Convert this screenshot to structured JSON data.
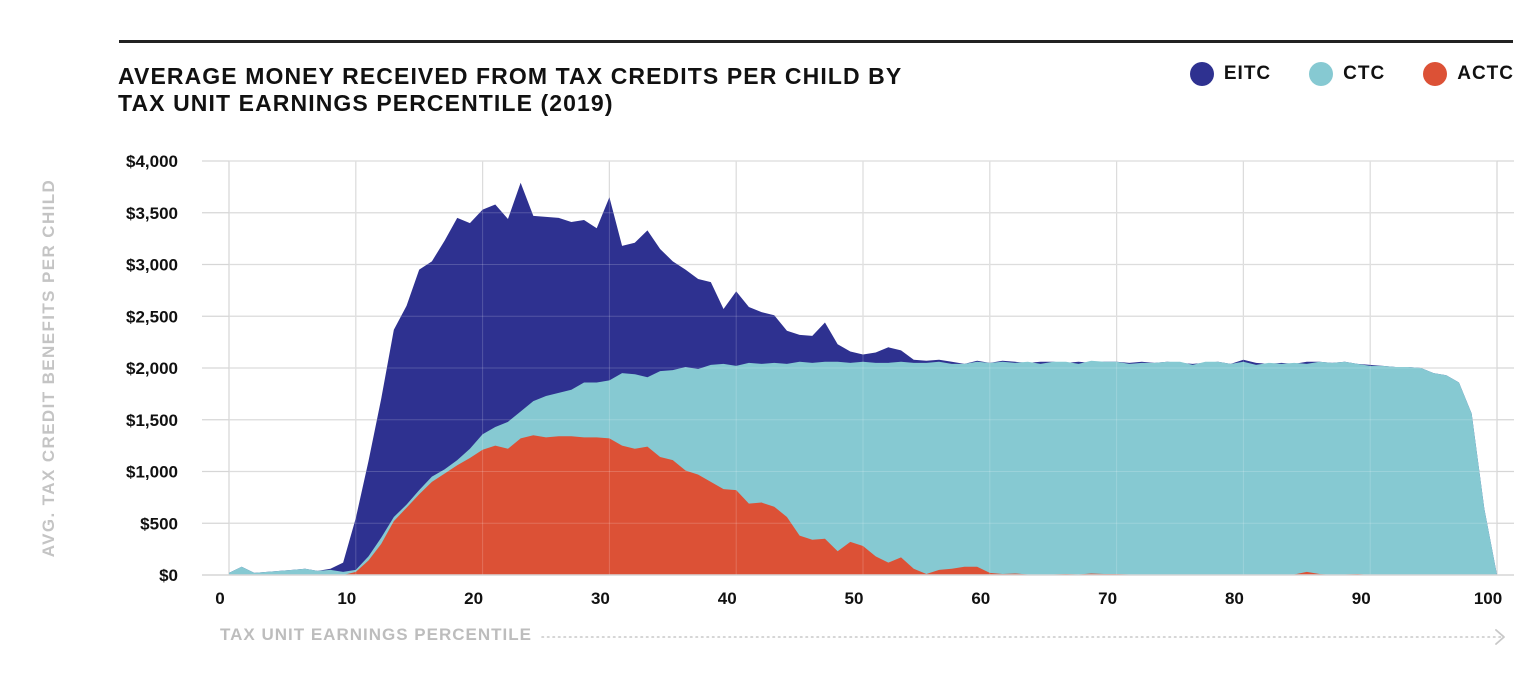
{
  "title_lines": [
    "AVERAGE MONEY RECEIVED FROM TAX CREDITS PER CHILD BY",
    "TAX UNIT EARNINGS PERCENTILE (2019)"
  ],
  "legend": [
    {
      "label": "EITC",
      "color": "#2e3190"
    },
    {
      "label": "CTC",
      "color": "#86c9d2"
    },
    {
      "label": "ACTC",
      "color": "#dc5136"
    }
  ],
  "chart_data": {
    "type": "area",
    "title": "AVERAGE MONEY RECEIVED FROM TAX CREDITS PER CHILD BY TAX UNIT EARNINGS PERCENTILE (2019)",
    "xlabel": "TAX UNIT EARNINGS PERCENTILE",
    "ylabel": "AVG. TAX CREDIT BENEFITS PER CHILD",
    "xlim": [
      0,
      100
    ],
    "ylim": [
      0,
      4000
    ],
    "xticks": [
      0,
      10,
      20,
      30,
      40,
      50,
      60,
      70,
      80,
      90,
      100
    ],
    "xtick_labels": [
      "0",
      "10",
      "20",
      "30",
      "40",
      "50",
      "60",
      "70",
      "80",
      "90",
      "100"
    ],
    "yticks": [
      0,
      500,
      1000,
      1500,
      2000,
      2500,
      3000,
      3500,
      4000
    ],
    "ytick_labels": [
      "$0",
      "$500",
      "$1,000",
      "$1,500",
      "$2,000",
      "$2,500",
      "$3,000",
      "$3,500",
      "$4,000"
    ],
    "grid": true,
    "note": "Areas are overlaid from the baseline (EITC drawn behind CTC, CTC behind ACTC); values are each series' plotted height.",
    "series": [
      {
        "name": "EITC",
        "color": "#2e3190",
        "points": [
          [
            0,
            20
          ],
          [
            1,
            80
          ],
          [
            2,
            20
          ],
          [
            3,
            30
          ],
          [
            4,
            40
          ],
          [
            5,
            50
          ],
          [
            6,
            60
          ],
          [
            7,
            40
          ],
          [
            8,
            60
          ],
          [
            9,
            120
          ],
          [
            10,
            550
          ],
          [
            11,
            1100
          ],
          [
            12,
            1700
          ],
          [
            13,
            2370
          ],
          [
            14,
            2600
          ],
          [
            15,
            2950
          ],
          [
            16,
            3030
          ],
          [
            17,
            3230
          ],
          [
            18,
            3450
          ],
          [
            19,
            3400
          ],
          [
            20,
            3530
          ],
          [
            21,
            3580
          ],
          [
            22,
            3440
          ],
          [
            23,
            3790
          ],
          [
            24,
            3470
          ],
          [
            25,
            3460
          ],
          [
            26,
            3450
          ],
          [
            27,
            3410
          ],
          [
            28,
            3430
          ],
          [
            29,
            3350
          ],
          [
            30,
            3650
          ],
          [
            31,
            3180
          ],
          [
            32,
            3210
          ],
          [
            33,
            3330
          ],
          [
            34,
            3150
          ],
          [
            35,
            3030
          ],
          [
            36,
            2950
          ],
          [
            37,
            2860
          ],
          [
            38,
            2830
          ],
          [
            39,
            2570
          ],
          [
            40,
            2740
          ],
          [
            41,
            2590
          ],
          [
            42,
            2540
          ],
          [
            43,
            2510
          ],
          [
            44,
            2360
          ],
          [
            45,
            2320
          ],
          [
            46,
            2310
          ],
          [
            47,
            2440
          ],
          [
            48,
            2230
          ],
          [
            49,
            2160
          ],
          [
            50,
            2130
          ],
          [
            51,
            2150
          ],
          [
            52,
            2200
          ],
          [
            53,
            2170
          ],
          [
            54,
            2080
          ],
          [
            55,
            2070
          ],
          [
            56,
            2080
          ],
          [
            57,
            2060
          ],
          [
            58,
            2040
          ],
          [
            59,
            2070
          ],
          [
            60,
            2050
          ],
          [
            61,
            2070
          ],
          [
            62,
            2060
          ],
          [
            63,
            2050
          ],
          [
            64,
            2060
          ],
          [
            65,
            2060
          ],
          [
            66,
            2050
          ],
          [
            67,
            2060
          ],
          [
            68,
            2050
          ],
          [
            69,
            2060
          ],
          [
            70,
            2060
          ],
          [
            71,
            2050
          ],
          [
            72,
            2060
          ],
          [
            73,
            2050
          ],
          [
            74,
            2060
          ],
          [
            75,
            2050
          ],
          [
            76,
            2040
          ],
          [
            77,
            2050
          ],
          [
            78,
            2060
          ],
          [
            79,
            2040
          ],
          [
            80,
            2080
          ],
          [
            81,
            2050
          ],
          [
            82,
            2040
          ],
          [
            83,
            2050
          ],
          [
            84,
            2040
          ],
          [
            85,
            2060
          ],
          [
            86,
            2060
          ],
          [
            87,
            2050
          ],
          [
            88,
            2060
          ],
          [
            89,
            2040
          ],
          [
            90,
            2030
          ],
          [
            91,
            2020
          ],
          [
            92,
            2010
          ],
          [
            93,
            2010
          ],
          [
            94,
            2000
          ],
          [
            95,
            1950
          ],
          [
            96,
            1930
          ],
          [
            97,
            1860
          ],
          [
            98,
            1560
          ],
          [
            99,
            640
          ],
          [
            100,
            0
          ]
        ]
      },
      {
        "name": "CTC",
        "color": "#86c9d2",
        "points": [
          [
            0,
            20
          ],
          [
            1,
            80
          ],
          [
            2,
            20
          ],
          [
            3,
            30
          ],
          [
            4,
            40
          ],
          [
            5,
            50
          ],
          [
            6,
            60
          ],
          [
            7,
            40
          ],
          [
            8,
            50
          ],
          [
            9,
            30
          ],
          [
            10,
            50
          ],
          [
            11,
            180
          ],
          [
            12,
            360
          ],
          [
            13,
            560
          ],
          [
            14,
            680
          ],
          [
            15,
            820
          ],
          [
            16,
            950
          ],
          [
            17,
            1020
          ],
          [
            18,
            1110
          ],
          [
            19,
            1220
          ],
          [
            20,
            1360
          ],
          [
            21,
            1430
          ],
          [
            22,
            1480
          ],
          [
            23,
            1580
          ],
          [
            24,
            1680
          ],
          [
            25,
            1730
          ],
          [
            26,
            1760
          ],
          [
            27,
            1790
          ],
          [
            28,
            1860
          ],
          [
            29,
            1860
          ],
          [
            30,
            1880
          ],
          [
            31,
            1950
          ],
          [
            32,
            1940
          ],
          [
            33,
            1910
          ],
          [
            34,
            1970
          ],
          [
            35,
            1980
          ],
          [
            36,
            2010
          ],
          [
            37,
            1990
          ],
          [
            38,
            2030
          ],
          [
            39,
            2040
          ],
          [
            40,
            2020
          ],
          [
            41,
            2050
          ],
          [
            42,
            2040
          ],
          [
            43,
            2050
          ],
          [
            44,
            2040
          ],
          [
            45,
            2060
          ],
          [
            46,
            2050
          ],
          [
            47,
            2060
          ],
          [
            48,
            2060
          ],
          [
            49,
            2050
          ],
          [
            50,
            2060
          ],
          [
            51,
            2050
          ],
          [
            52,
            2050
          ],
          [
            53,
            2060
          ],
          [
            54,
            2050
          ],
          [
            55,
            2050
          ],
          [
            56,
            2060
          ],
          [
            57,
            2040
          ],
          [
            58,
            2040
          ],
          [
            59,
            2060
          ],
          [
            60,
            2050
          ],
          [
            61,
            2060
          ],
          [
            62,
            2050
          ],
          [
            63,
            2060
          ],
          [
            64,
            2040
          ],
          [
            65,
            2060
          ],
          [
            66,
            2060
          ],
          [
            67,
            2040
          ],
          [
            68,
            2070
          ],
          [
            69,
            2060
          ],
          [
            70,
            2060
          ],
          [
            71,
            2040
          ],
          [
            72,
            2050
          ],
          [
            73,
            2050
          ],
          [
            74,
            2060
          ],
          [
            75,
            2060
          ],
          [
            76,
            2030
          ],
          [
            77,
            2060
          ],
          [
            78,
            2060
          ],
          [
            79,
            2040
          ],
          [
            80,
            2060
          ],
          [
            81,
            2030
          ],
          [
            82,
            2050
          ],
          [
            83,
            2040
          ],
          [
            84,
            2050
          ],
          [
            85,
            2040
          ],
          [
            86,
            2060
          ],
          [
            87,
            2050
          ],
          [
            88,
            2060
          ],
          [
            89,
            2040
          ],
          [
            90,
            2020
          ],
          [
            91,
            2020
          ],
          [
            92,
            2010
          ],
          [
            93,
            2010
          ],
          [
            94,
            2000
          ],
          [
            95,
            1950
          ],
          [
            96,
            1930
          ],
          [
            97,
            1860
          ],
          [
            98,
            1560
          ],
          [
            99,
            640
          ],
          [
            100,
            0
          ]
        ]
      },
      {
        "name": "ACTC",
        "color": "#dc5136",
        "points": [
          [
            0,
            0
          ],
          [
            8,
            0
          ],
          [
            9,
            0
          ],
          [
            10,
            30
          ],
          [
            11,
            140
          ],
          [
            12,
            300
          ],
          [
            13,
            520
          ],
          [
            14,
            650
          ],
          [
            15,
            780
          ],
          [
            16,
            900
          ],
          [
            17,
            980
          ],
          [
            18,
            1060
          ],
          [
            19,
            1130
          ],
          [
            20,
            1210
          ],
          [
            21,
            1250
          ],
          [
            22,
            1220
          ],
          [
            23,
            1320
          ],
          [
            24,
            1350
          ],
          [
            25,
            1330
          ],
          [
            26,
            1340
          ],
          [
            27,
            1340
          ],
          [
            28,
            1330
          ],
          [
            29,
            1330
          ],
          [
            30,
            1320
          ],
          [
            31,
            1250
          ],
          [
            32,
            1220
          ],
          [
            33,
            1240
          ],
          [
            34,
            1140
          ],
          [
            35,
            1110
          ],
          [
            36,
            1010
          ],
          [
            37,
            970
          ],
          [
            38,
            900
          ],
          [
            39,
            830
          ],
          [
            40,
            820
          ],
          [
            41,
            690
          ],
          [
            42,
            700
          ],
          [
            43,
            660
          ],
          [
            44,
            560
          ],
          [
            45,
            380
          ],
          [
            46,
            340
          ],
          [
            47,
            350
          ],
          [
            48,
            230
          ],
          [
            49,
            320
          ],
          [
            50,
            280
          ],
          [
            51,
            180
          ],
          [
            52,
            120
          ],
          [
            53,
            170
          ],
          [
            54,
            60
          ],
          [
            55,
            10
          ],
          [
            56,
            50
          ],
          [
            57,
            60
          ],
          [
            58,
            80
          ],
          [
            59,
            80
          ],
          [
            60,
            20
          ],
          [
            61,
            10
          ],
          [
            62,
            15
          ],
          [
            63,
            5
          ],
          [
            64,
            5
          ],
          [
            65,
            5
          ],
          [
            66,
            10
          ],
          [
            67,
            5
          ],
          [
            68,
            15
          ],
          [
            69,
            10
          ],
          [
            70,
            10
          ],
          [
            71,
            5
          ],
          [
            72,
            5
          ],
          [
            73,
            5
          ],
          [
            74,
            0
          ],
          [
            80,
            0
          ],
          [
            84,
            5
          ],
          [
            85,
            30
          ],
          [
            86,
            10
          ],
          [
            87,
            0
          ],
          [
            88,
            5
          ],
          [
            89,
            10
          ],
          [
            90,
            0
          ],
          [
            100,
            0
          ]
        ]
      }
    ]
  }
}
